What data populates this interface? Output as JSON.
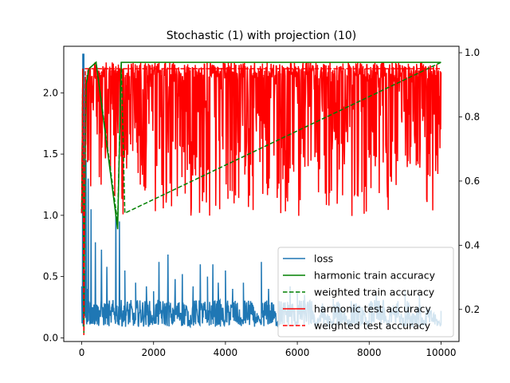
{
  "chart_data": {
    "type": "line",
    "title": "Stochastic (1) with projection (10)",
    "xlabel": "",
    "ylabel_left": "",
    "ylabel_right": "",
    "xlim": [
      -500,
      10500
    ],
    "ylim_left": [
      -0.03,
      2.38
    ],
    "ylim_right": [
      0.1,
      1.02
    ],
    "x_ticks": [
      0,
      2000,
      4000,
      6000,
      8000,
      10000
    ],
    "x_tick_labels": [
      "0",
      "2000",
      "4000",
      "6000",
      "8000",
      "10000"
    ],
    "y_left_ticks": [
      0.0,
      0.5,
      1.0,
      1.5,
      2.0
    ],
    "y_left_tick_labels": [
      "0.0",
      "0.5",
      "1.0",
      "1.5",
      "2.0"
    ],
    "y_right_ticks": [
      0.2,
      0.4,
      0.6,
      0.8,
      1.0
    ],
    "y_right_tick_labels": [
      "0.2",
      "0.4",
      "0.6",
      "0.8",
      "1.0"
    ],
    "grid": false,
    "legend_position": "lower-right",
    "series": [
      {
        "name": "loss",
        "axis": "left",
        "color": "#1f77b4",
        "style": "solid",
        "x": [
          0,
          30,
          60,
          100,
          150,
          200,
          300,
          400,
          600,
          800,
          1000,
          1200,
          1500,
          2000,
          2500,
          3000,
          3500,
          4000,
          4500,
          5000,
          5500,
          6000,
          6500,
          7000,
          7500,
          8000,
          8500,
          9000,
          9500,
          10000
        ],
        "values": [
          0.42,
          2.32,
          0.9,
          0.55,
          0.4,
          0.3,
          0.25,
          0.22,
          0.2,
          0.18,
          0.17,
          0.16,
          0.15,
          0.14,
          0.14,
          0.13,
          0.13,
          0.13,
          0.12,
          0.12,
          0.12,
          0.12,
          0.12,
          0.11,
          0.11,
          0.11,
          0.11,
          0.11,
          0.11,
          0.11
        ],
        "spikes": [
          [
            60,
            2.32
          ],
          [
            120,
            1.45
          ],
          [
            180,
            1.3
          ],
          [
            260,
            1.05
          ],
          [
            380,
            0.78
          ],
          [
            550,
            0.72
          ],
          [
            700,
            0.58
          ],
          [
            950,
            1.05
          ],
          [
            1050,
            0.95
          ],
          [
            1200,
            0.55
          ],
          [
            1500,
            0.45
          ],
          [
            1800,
            0.42
          ],
          [
            2000,
            0.38
          ],
          [
            2150,
            0.62
          ],
          [
            2400,
            0.68
          ],
          [
            2600,
            0.48
          ],
          [
            2800,
            0.52
          ],
          [
            3100,
            0.42
          ],
          [
            3300,
            0.6
          ],
          [
            3500,
            0.5
          ],
          [
            3650,
            0.6
          ],
          [
            3800,
            0.45
          ],
          [
            4000,
            0.55
          ],
          [
            4200,
            0.4
          ],
          [
            4500,
            0.45
          ],
          [
            4700,
            0.3
          ],
          [
            5000,
            0.62
          ],
          [
            5200,
            0.4
          ],
          [
            5500,
            0.3
          ],
          [
            5800,
            0.42
          ],
          [
            6000,
            0.38
          ],
          [
            6200,
            0.35
          ],
          [
            6400,
            0.3
          ],
          [
            6700,
            0.28
          ],
          [
            7000,
            0.32
          ],
          [
            7300,
            0.25
          ],
          [
            7500,
            0.3
          ],
          [
            7800,
            0.25
          ],
          [
            8000,
            0.28
          ],
          [
            8200,
            0.35
          ],
          [
            8400,
            0.3
          ],
          [
            8600,
            0.25
          ],
          [
            8800,
            0.3
          ],
          [
            9000,
            0.38
          ],
          [
            9200,
            0.2
          ],
          [
            9400,
            0.35
          ],
          [
            9600,
            0.25
          ],
          [
            9800,
            0.2
          ],
          [
            10000,
            0.22
          ]
        ]
      },
      {
        "name": "harmonic train accuracy",
        "axis": "right",
        "color": "#008000",
        "style": "solid",
        "x": [
          0,
          30,
          60,
          90,
          120,
          200,
          400,
          1000,
          1100,
          10000
        ],
        "values": [
          0.5,
          0.95,
          0.12,
          0.6,
          0.9,
          0.95,
          0.97,
          0.45,
          0.97,
          0.97
        ]
      },
      {
        "name": "weighted train accuracy",
        "axis": "right",
        "color": "#008000",
        "style": "dashed",
        "x": [
          0,
          30,
          60,
          90,
          120,
          200,
          400,
          1000,
          1100,
          1200,
          10000
        ],
        "values": [
          0.5,
          0.95,
          0.12,
          0.55,
          0.9,
          0.95,
          0.97,
          0.47,
          0.97,
          0.5,
          0.97
        ]
      },
      {
        "name": "harmonic test accuracy",
        "axis": "right",
        "color": "#ff0000",
        "style": "solid",
        "top": 0.97,
        "bottom": 0.49,
        "x": [
          0,
          30,
          60,
          100,
          10000
        ],
        "values": [
          0.5,
          0.95,
          0.13,
          0.95,
          0.95
        ]
      },
      {
        "name": "weighted test accuracy",
        "axis": "right",
        "color": "#ff0000",
        "style": "dashed",
        "x": [
          0,
          30,
          60,
          100,
          10000
        ],
        "values": [
          0.5,
          0.95,
          0.12,
          0.95,
          0.95
        ]
      }
    ]
  }
}
